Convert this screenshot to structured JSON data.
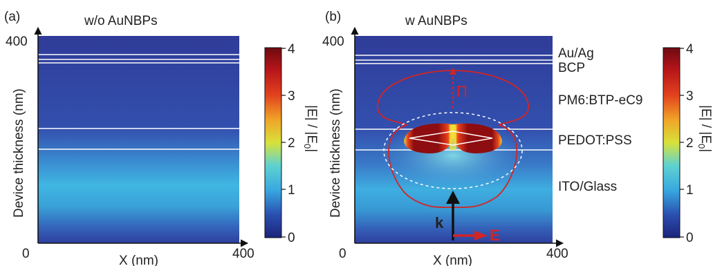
{
  "panels": [
    {
      "label": "(a)",
      "title": "w/o AuNBPs",
      "y_max_tick": "400",
      "y_min_tick": "0",
      "x_max_tick": "400",
      "x_axis_label": "X (nm)",
      "y_axis_label": "Device thickness (nm)"
    },
    {
      "label": "(b)",
      "title": "w AuNBPs",
      "y_max_tick": "400",
      "y_min_tick": "0",
      "x_max_tick": "400",
      "x_axis_label": "X (nm)",
      "y_axis_label": "Device thickness (nm)",
      "layers": [
        "Au/Ag",
        "BCP",
        "PM6:BTP-eC9",
        "PEDOT:PSS",
        "ITO/Glass"
      ],
      "vector_labels": {
        "poynting": "Π",
        "wave": "k",
        "field": "E"
      }
    }
  ],
  "colorbars": [
    {
      "ticks": [
        "4",
        "3",
        "2",
        "1",
        "0"
      ],
      "label": "|E| / |E",
      "label_sub": "0",
      "label_end": "|"
    },
    {
      "ticks": [
        "4",
        "3",
        "2",
        "1",
        "0"
      ],
      "label": "|E| / |E",
      "label_sub": "0",
      "label_end": "|"
    }
  ],
  "colors": {
    "field_low": "#2e3b96",
    "field_mid": "#3fb8e0",
    "hotspot": "#8b0d0d",
    "pattern_red": "#d42424",
    "axis": "#111111"
  }
}
